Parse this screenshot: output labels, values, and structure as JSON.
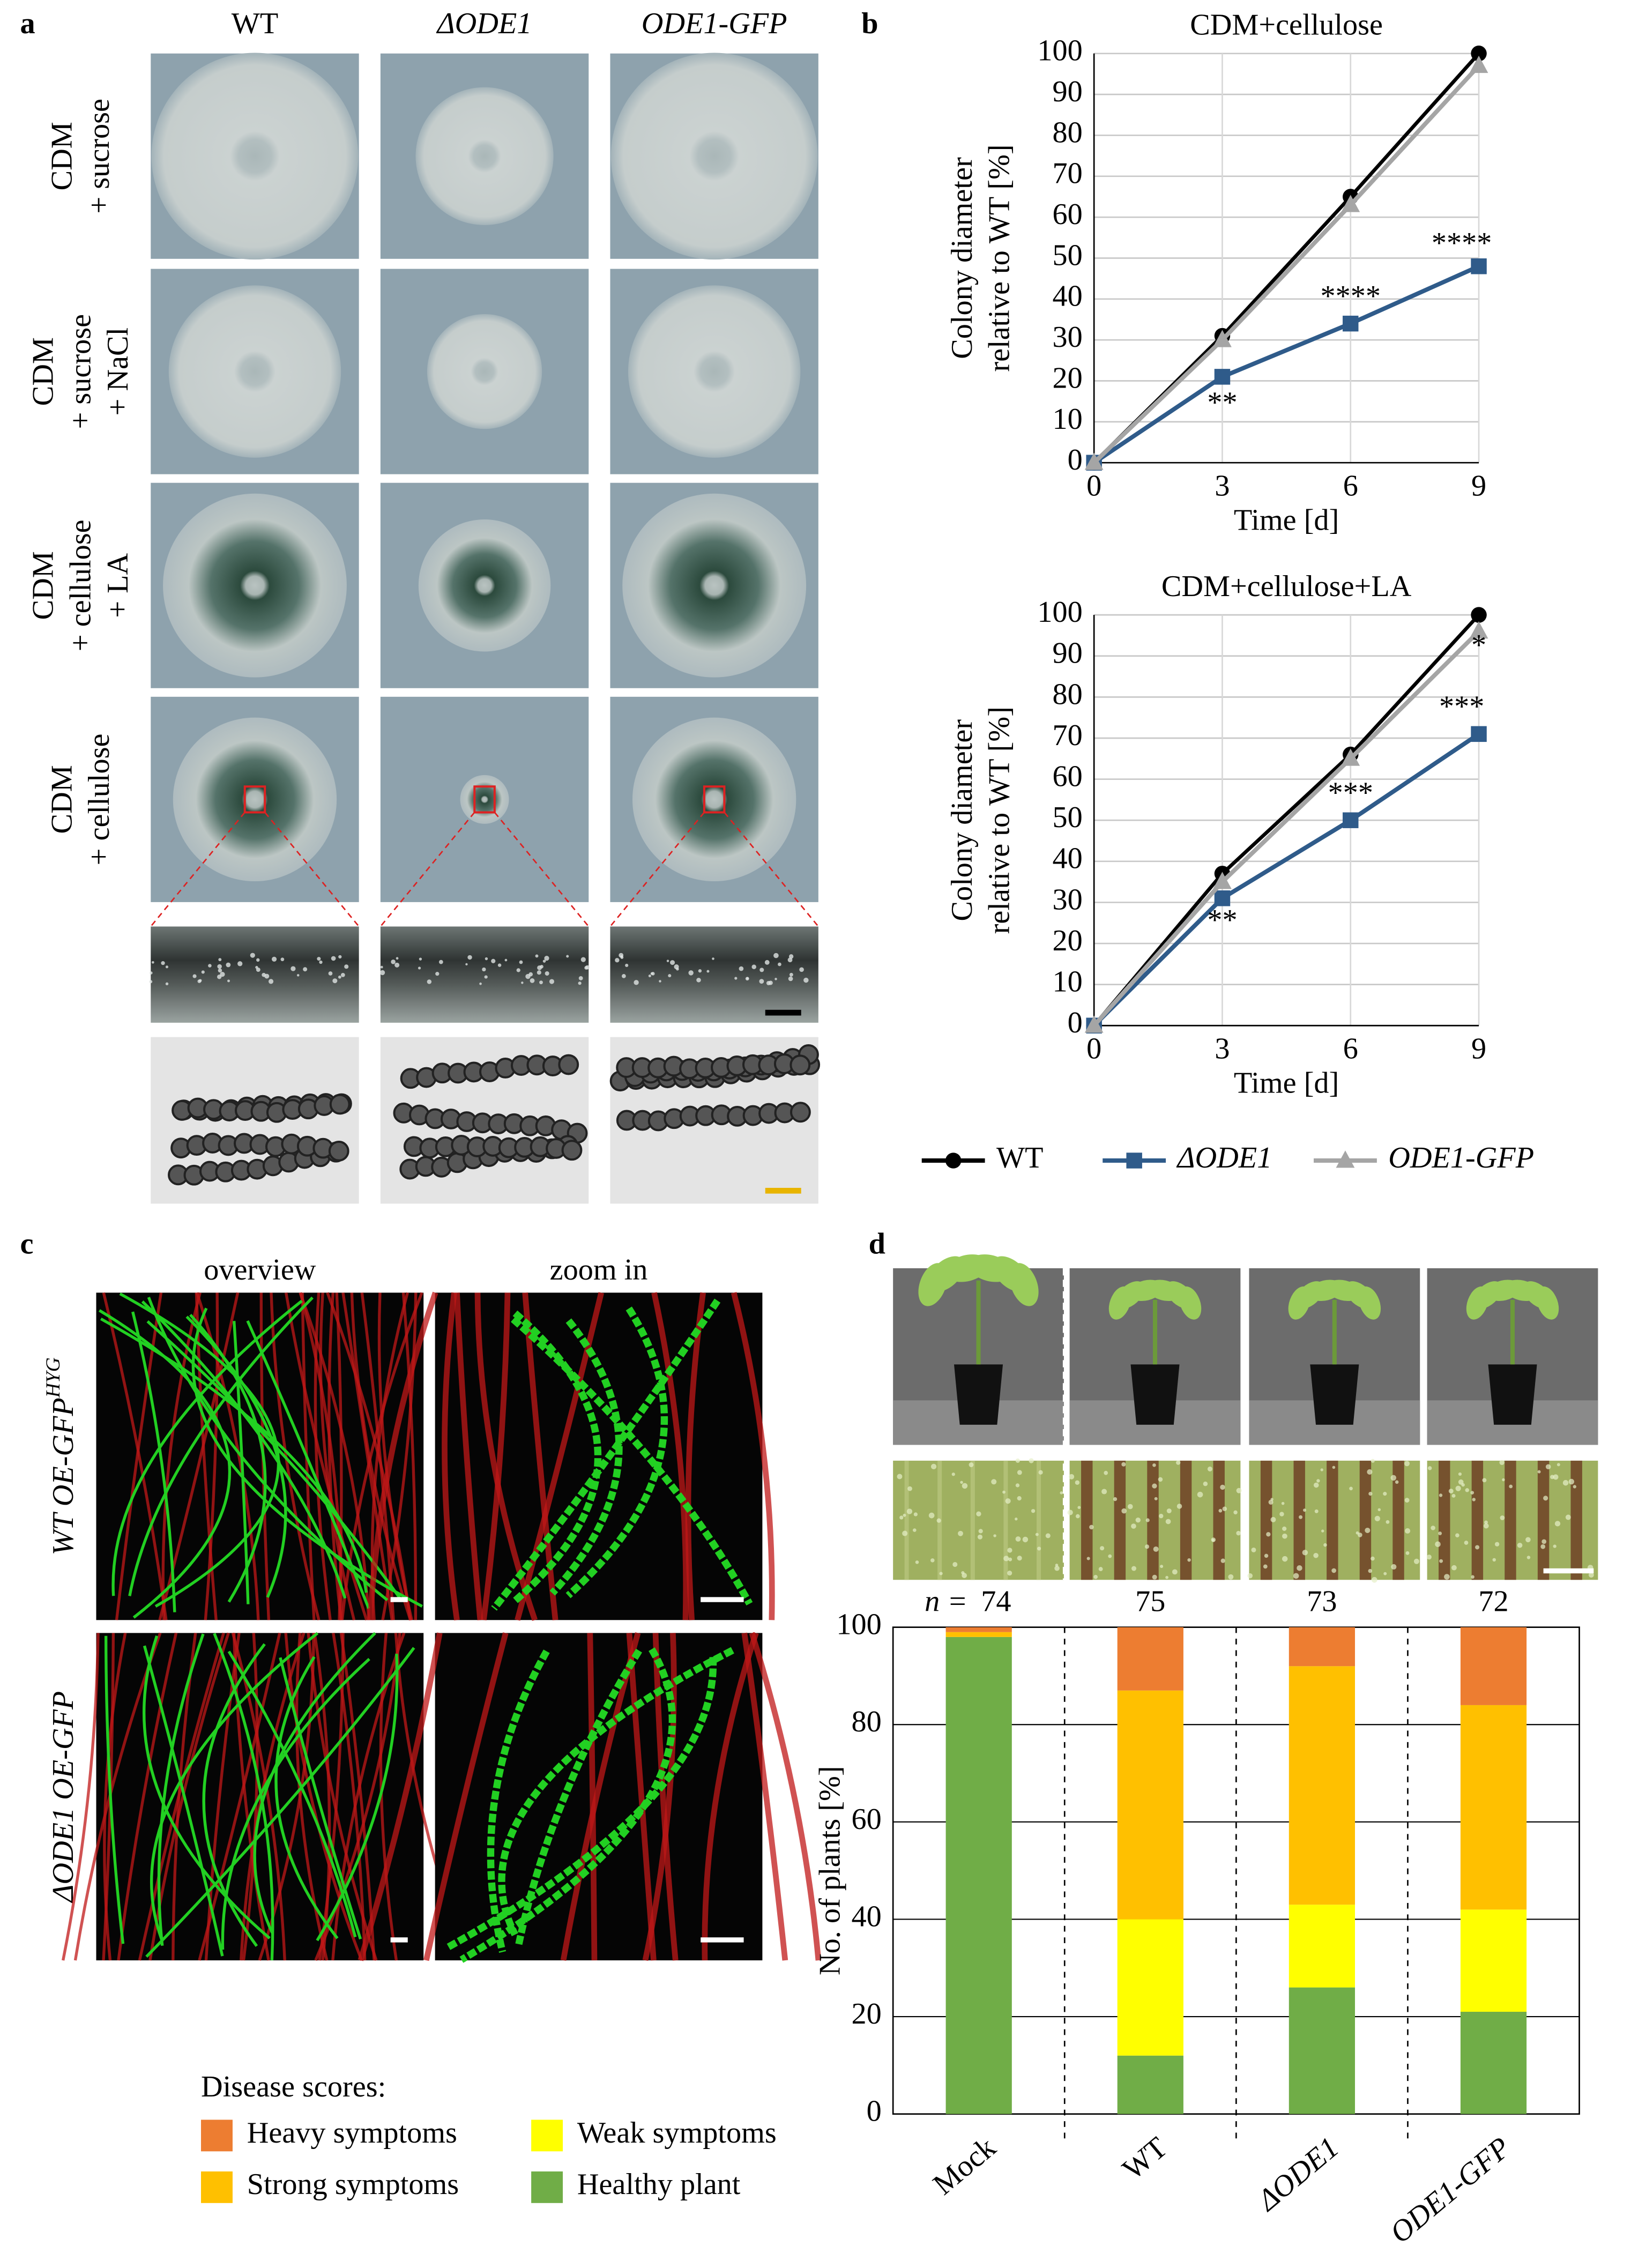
{
  "panel_labels": [
    "a",
    "b",
    "c",
    "d"
  ],
  "panel_a": {
    "columns": [
      "WT",
      "ΔODE1",
      "ODE1-GFP"
    ],
    "rows": [
      [
        "CDM",
        "+ sucrose"
      ],
      [
        "CDM",
        "+ sucrose",
        "+ NaCl"
      ],
      [
        "CDM",
        "+ cellulose",
        "+ LA"
      ],
      [
        "CDM",
        "+ cellulose"
      ]
    ]
  },
  "panel_c": {
    "columns": [
      "overview",
      "zoom in"
    ],
    "rows": [
      {
        "text": "WT OE-GFP",
        "sup": "HYG"
      },
      {
        "text": "ΔODE1 OE-GFP"
      }
    ]
  },
  "chart_data": [
    {
      "type": "line",
      "title": "CDM+cellulose",
      "x": [
        0,
        3,
        6,
        9
      ],
      "xlabel": "Time [d]",
      "ylabel": [
        "Colony diameter",
        "relative to WT [%]"
      ],
      "xlim": [
        0,
        9
      ],
      "ylim": [
        0,
        100
      ],
      "xticks": [
        0,
        3,
        6,
        9
      ],
      "yticks": [
        0,
        10,
        20,
        30,
        40,
        50,
        60,
        70,
        80,
        90,
        100
      ],
      "grid": true,
      "legend": "bottom",
      "series": [
        {
          "name": "WT",
          "color": "#000000",
          "marker": "circle",
          "values": [
            0,
            31,
            65,
            100
          ]
        },
        {
          "name": "ΔODE1",
          "color": "#2f5b8a",
          "marker": "square",
          "values": [
            0,
            21,
            34,
            48
          ]
        },
        {
          "name": "ODE1-GFP",
          "color": "#a5a5a5",
          "marker": "triangle",
          "values": [
            0,
            30,
            63,
            97
          ]
        }
      ],
      "annotations": [
        {
          "text": "**",
          "x": 3,
          "y": 14
        },
        {
          "text": "****",
          "x": 6,
          "y": 40
        },
        {
          "text": "****",
          "x": 8.6,
          "y": 53
        }
      ]
    },
    {
      "type": "line",
      "title": "CDM+cellulose+LA",
      "x": [
        0,
        3,
        6,
        9
      ],
      "xlabel": "Time [d]",
      "ylabel": [
        "Colony diameter",
        "relative to WT [%]"
      ],
      "xlim": [
        0,
        9
      ],
      "ylim": [
        0,
        100
      ],
      "xticks": [
        0,
        3,
        6,
        9
      ],
      "yticks": [
        0,
        10,
        20,
        30,
        40,
        50,
        60,
        70,
        80,
        90,
        100
      ],
      "grid": true,
      "series": [
        {
          "color": "#000000",
          "marker": "circle",
          "values": [
            0,
            37,
            66,
            100
          ]
        },
        {
          "color": "#2f5b8a",
          "marker": "square",
          "values": [
            0,
            31,
            50,
            71
          ]
        },
        {
          "color": "#a5a5a5",
          "marker": "triangle",
          "values": [
            0,
            35,
            65,
            96
          ]
        }
      ],
      "annotations": [
        {
          "text": "**",
          "x": 3,
          "y": 25
        },
        {
          "text": "***",
          "x": 6,
          "y": 56
        },
        {
          "text": "***",
          "x": 8.6,
          "y": 77
        },
        {
          "text": "*",
          "x": 9,
          "y": 92
        }
      ]
    },
    {
      "type": "stacked_bar",
      "categories": [
        "Mock",
        "WT",
        "ΔODE1",
        "ODE1-GFP"
      ],
      "ylabel": "No. of plants [%]",
      "ylim": [
        0,
        100
      ],
      "yticks": [
        0,
        20,
        40,
        60,
        80,
        100
      ],
      "grid": true,
      "n_label": "n =",
      "n": [
        74,
        75,
        73,
        72
      ],
      "legend_title": "Disease scores:",
      "series": [
        {
          "name": "Healthy plant",
          "color": "#70ad47",
          "values": [
            98,
            12,
            26,
            21
          ]
        },
        {
          "name": "Weak symptoms",
          "color": "#ffff00",
          "values": [
            0,
            28,
            17,
            21
          ]
        },
        {
          "name": "Strong symptoms",
          "color": "#ffc000",
          "values": [
            1,
            47,
            49,
            42
          ]
        },
        {
          "name": "Heavy symptoms",
          "color": "#ed7d31",
          "values": [
            1,
            13,
            8,
            16
          ]
        }
      ]
    }
  ]
}
